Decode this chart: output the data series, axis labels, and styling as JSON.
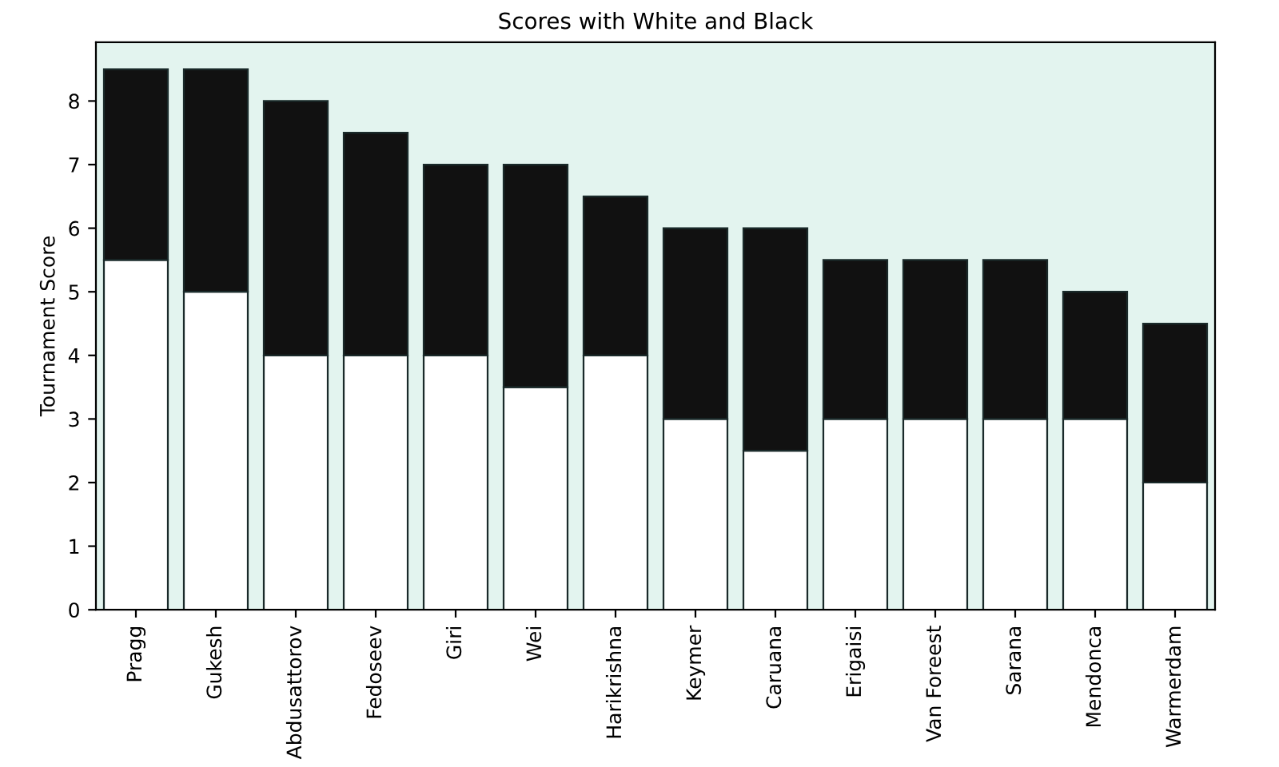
{
  "chart_data": {
    "type": "bar",
    "title": "Scores with White and Black",
    "ylabel": "Tournament Score",
    "categories": [
      "Pragg",
      "Gukesh",
      "Abdusattorov",
      "Fedoseev",
      "Giri",
      "Wei",
      "Harikrishna",
      "Keymer",
      "Caruana",
      "Erigaisi",
      "Van Foreest",
      "Sarana",
      "Mendonca",
      "Warmerdam"
    ],
    "stacked": true,
    "series": [
      {
        "color": "#ffffff",
        "values": [
          5.5,
          5,
          4,
          4,
          4,
          3.5,
          4,
          3,
          2.5,
          3,
          3,
          3,
          3,
          2
        ]
      },
      {
        "color": "#111111",
        "values": [
          3,
          3.5,
          4,
          3.5,
          3,
          3.5,
          2.5,
          3,
          3.5,
          2.5,
          2.5,
          2.5,
          2,
          2.5
        ]
      }
    ],
    "ylim": [
      0,
      8.925
    ],
    "yticks": [
      0,
      1,
      2,
      3,
      4,
      5,
      6,
      7,
      8
    ],
    "grid": false,
    "legend": false
  }
}
